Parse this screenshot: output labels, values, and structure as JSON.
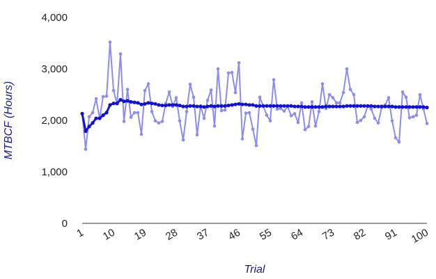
{
  "chart_data": {
    "type": "line",
    "title": "",
    "xlabel": "Trial",
    "ylabel": "MTBCF (Hours)",
    "xlim": [
      1,
      100
    ],
    "ylim": [
      0,
      4000
    ],
    "x_ticks": [
      1,
      10,
      19,
      28,
      37,
      46,
      55,
      64,
      73,
      82,
      91,
      100
    ],
    "x_tick_labels": [
      "1",
      "10",
      "19",
      "28",
      "37",
      "46",
      "55",
      "64",
      "73",
      "82",
      "91",
      "100"
    ],
    "y_ticks": [
      0,
      1000,
      2000,
      3000,
      4000
    ],
    "y_tick_labels": [
      "0",
      "1,000",
      "2,000",
      "3,000",
      "4,000"
    ],
    "grid": false,
    "legend": "none",
    "series_colors": [
      "#8c8cf0",
      "#1010d8"
    ],
    "series": [
      {
        "values": [
          2130,
          1440,
          2070,
          2150,
          2420,
          2040,
          2460,
          2470,
          3520,
          2580,
          2320,
          3290,
          1980,
          2600,
          2060,
          2150,
          2150,
          1730,
          2580,
          2710,
          2170,
          1990,
          1950,
          1980,
          2330,
          2550,
          2270,
          2440,
          1990,
          1620,
          2170,
          2700,
          2450,
          1720,
          2280,
          2040,
          2390,
          2590,
          1890,
          3000,
          2190,
          2200,
          2920,
          2930,
          2540,
          3120,
          1640,
          2140,
          2150,
          1830,
          1510,
          2450,
          2280,
          2100,
          1990,
          2790,
          2220,
          2230,
          2180,
          2270,
          2090,
          2130,
          1960,
          2340,
          1820,
          1880,
          2360,
          1890,
          2170,
          2710,
          2230,
          2500,
          2440,
          2340,
          2340,
          2540,
          3000,
          2600,
          2500,
          1960,
          2000,
          2070,
          2280,
          2220,
          2040,
          1950,
          2250,
          2300,
          2440,
          1990,
          1660,
          1580,
          2550,
          2450,
          2050,
          2070,
          2100,
          2500,
          2220,
          1940
        ]
      },
      {
        "values": [
          2130,
          1790,
          1880,
          1950,
          2040,
          2040,
          2100,
          2150,
          2300,
          2330,
          2330,
          2400,
          2370,
          2380,
          2360,
          2350,
          2340,
          2310,
          2320,
          2340,
          2330,
          2320,
          2300,
          2290,
          2290,
          2300,
          2300,
          2300,
          2290,
          2270,
          2270,
          2280,
          2280,
          2270,
          2270,
          2260,
          2270,
          2280,
          2270,
          2280,
          2280,
          2280,
          2290,
          2300,
          2310,
          2320,
          2310,
          2310,
          2300,
          2300,
          2280,
          2280,
          2280,
          2280,
          2280,
          2280,
          2280,
          2280,
          2280,
          2280,
          2280,
          2270,
          2270,
          2270,
          2260,
          2260,
          2260,
          2260,
          2260,
          2260,
          2270,
          2270,
          2270,
          2270,
          2270,
          2270,
          2280,
          2280,
          2280,
          2280,
          2280,
          2280,
          2280,
          2280,
          2270,
          2270,
          2270,
          2270,
          2270,
          2270,
          2260,
          2260,
          2260,
          2260,
          2260,
          2260,
          2260,
          2260,
          2260,
          2250
        ]
      }
    ]
  }
}
